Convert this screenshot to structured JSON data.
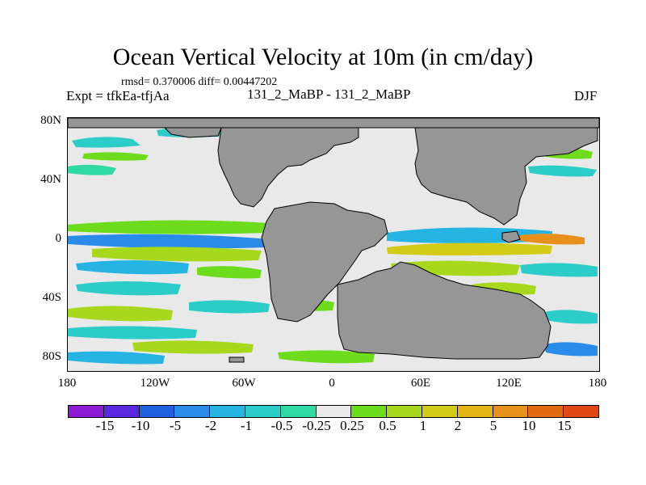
{
  "figure": {
    "title": "Ocean Vertical Velocity at 10m (in cm/day)",
    "stats": "rmsd= 0.370006 diff= 0.00447202",
    "experiment": "Expt = tfkEa-tfjAa",
    "subtitle": "131_2_MaBP - 131_2_MaBP",
    "season": "DJF"
  },
  "map": {
    "projection": "cylindrical equidistant",
    "land_color": "#969696",
    "lat_labels": [
      "80N",
      "40N",
      "0",
      "40S",
      "80S"
    ],
    "lon_labels": [
      "180",
      "120W",
      "60W",
      "0",
      "60E",
      "120E",
      "180"
    ]
  },
  "colorbar": {
    "colors": [
      "#8c1cd4",
      "#5a28e0",
      "#2060e0",
      "#2a8ce8",
      "#26b4e2",
      "#2ccdc8",
      "#30d8a4",
      "#e9e9e9",
      "#6cdc1c",
      "#a8d81c",
      "#d2cc18",
      "#e2b414",
      "#e8901c",
      "#e26a10",
      "#e04818"
    ],
    "labels": [
      "-15",
      "-10",
      "-5",
      "-2",
      "-1",
      "-0.5",
      "-0.25",
      "0.25",
      "0.5",
      "1",
      "2",
      "5",
      "10",
      "15"
    ]
  }
}
